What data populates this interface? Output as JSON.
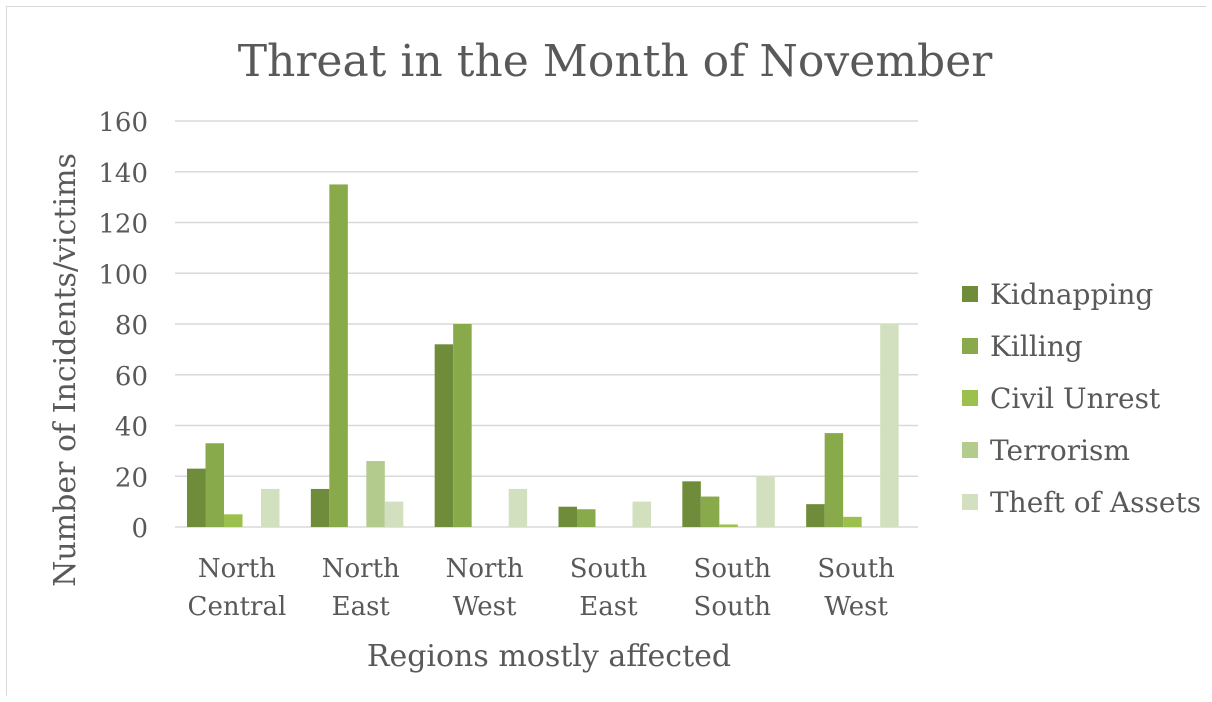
{
  "chart_data": {
    "type": "bar",
    "title": "Threat in the Month of November",
    "xlabel": "Regions mostly affected",
    "ylabel": "Number of Incidents/victims",
    "ylim": [
      0,
      160
    ],
    "yticks": [
      "0",
      "20",
      "40",
      "60",
      "80",
      "100",
      "120",
      "140",
      "160"
    ],
    "ytick_values": [
      0,
      20,
      40,
      60,
      80,
      100,
      120,
      140,
      160
    ],
    "grid": true,
    "legend_position": "right",
    "categories": [
      [
        "North",
        "Central"
      ],
      [
        "North",
        "East"
      ],
      [
        "North",
        "West"
      ],
      [
        "South",
        "East"
      ],
      [
        "South",
        "South"
      ],
      [
        "South",
        "West"
      ]
    ],
    "series": [
      {
        "name": "Kidnapping",
        "color": "#6e8c3a",
        "values": [
          23,
          15,
          72,
          8,
          18,
          9
        ]
      },
      {
        "name": "Killing",
        "color": "#88aa4a",
        "values": [
          33,
          135,
          80,
          7,
          12,
          37
        ]
      },
      {
        "name": "Civil Unrest",
        "color": "#9bc04e",
        "values": [
          5,
          0,
          0,
          0,
          1,
          4
        ]
      },
      {
        "name": "Terrorism",
        "color": "#b4cb8e",
        "values": [
          0,
          26,
          0,
          0,
          0,
          0
        ]
      },
      {
        "name": "Theft of Assets",
        "color": "#d2e0c0",
        "values": [
          15,
          10,
          15,
          10,
          20,
          80
        ]
      }
    ]
  }
}
